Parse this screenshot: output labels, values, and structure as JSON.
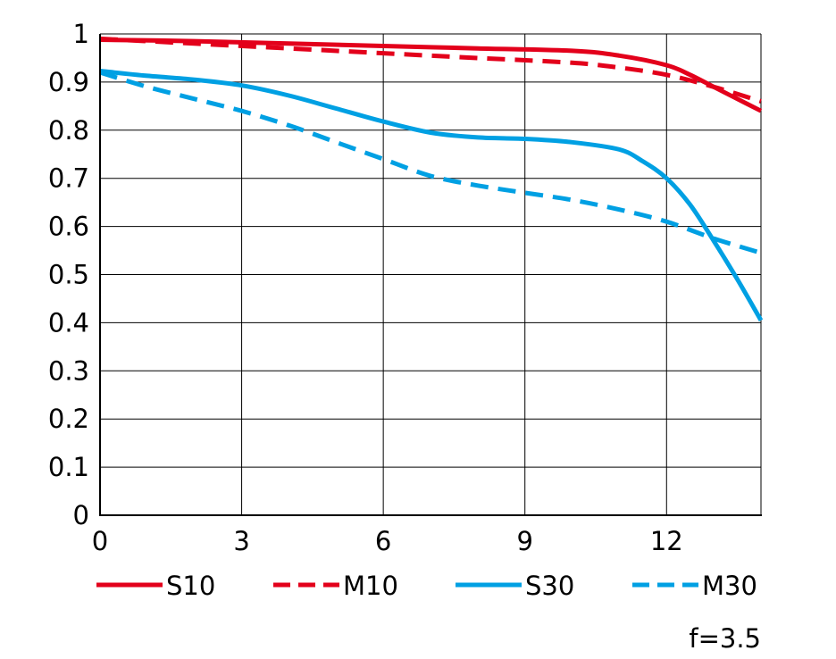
{
  "chart_data": {
    "type": "line",
    "title": "",
    "xlabel": "",
    "ylabel": "",
    "xlim": [
      0,
      14
    ],
    "ylim": [
      0,
      1
    ],
    "x_ticks": [
      0,
      3,
      6,
      9,
      12
    ],
    "x_tick_labels": [
      "0",
      "3",
      "6",
      "9",
      "12"
    ],
    "y_ticks": [
      0,
      0.1,
      0.2,
      0.3,
      0.4,
      0.5,
      0.6,
      0.7,
      0.8,
      0.9,
      1
    ],
    "y_tick_labels": [
      "0",
      "0.1",
      "0.2",
      "0.3",
      "0.4",
      "0.5",
      "0.6",
      "0.7",
      "0.8",
      "0.9",
      "1"
    ],
    "grid": true,
    "legend_position": "bottom",
    "annotation": "f=3.5",
    "series": [
      {
        "name": "S10",
        "color": "#e3001b",
        "dashed": false,
        "points": [
          [
            0,
            0.988
          ],
          [
            2,
            0.985
          ],
          [
            4,
            0.98
          ],
          [
            6,
            0.975
          ],
          [
            8,
            0.97
          ],
          [
            10,
            0.965
          ],
          [
            11,
            0.955
          ],
          [
            12,
            0.935
          ],
          [
            12.5,
            0.915
          ],
          [
            13,
            0.89
          ],
          [
            13.5,
            0.865
          ],
          [
            14,
            0.84
          ]
        ]
      },
      {
        "name": "M10",
        "color": "#e3001b",
        "dashed": true,
        "points": [
          [
            0,
            0.99
          ],
          [
            2,
            0.98
          ],
          [
            4,
            0.97
          ],
          [
            6,
            0.96
          ],
          [
            8,
            0.95
          ],
          [
            10,
            0.94
          ],
          [
            11,
            0.93
          ],
          [
            12,
            0.915
          ],
          [
            13,
            0.89
          ],
          [
            14,
            0.86
          ]
        ]
      },
      {
        "name": "S30",
        "color": "#00a0e3",
        "dashed": false,
        "points": [
          [
            0,
            0.923
          ],
          [
            1,
            0.913
          ],
          [
            2,
            0.905
          ],
          [
            3,
            0.893
          ],
          [
            4,
            0.872
          ],
          [
            5,
            0.845
          ],
          [
            6,
            0.818
          ],
          [
            7,
            0.795
          ],
          [
            8,
            0.785
          ],
          [
            9,
            0.782
          ],
          [
            10,
            0.775
          ],
          [
            11,
            0.76
          ],
          [
            11.5,
            0.735
          ],
          [
            12,
            0.7
          ],
          [
            12.5,
            0.645
          ],
          [
            13,
            0.57
          ],
          [
            13.5,
            0.49
          ],
          [
            14,
            0.405
          ]
        ]
      },
      {
        "name": "M30",
        "color": "#00a0e3",
        "dashed": true,
        "points": [
          [
            0,
            0.92
          ],
          [
            1,
            0.89
          ],
          [
            2,
            0.865
          ],
          [
            3,
            0.84
          ],
          [
            4,
            0.81
          ],
          [
            5,
            0.775
          ],
          [
            6,
            0.74
          ],
          [
            7,
            0.705
          ],
          [
            8,
            0.685
          ],
          [
            9,
            0.67
          ],
          [
            10,
            0.655
          ],
          [
            11,
            0.635
          ],
          [
            12,
            0.61
          ],
          [
            13,
            0.575
          ],
          [
            14,
            0.545
          ]
        ]
      }
    ]
  }
}
